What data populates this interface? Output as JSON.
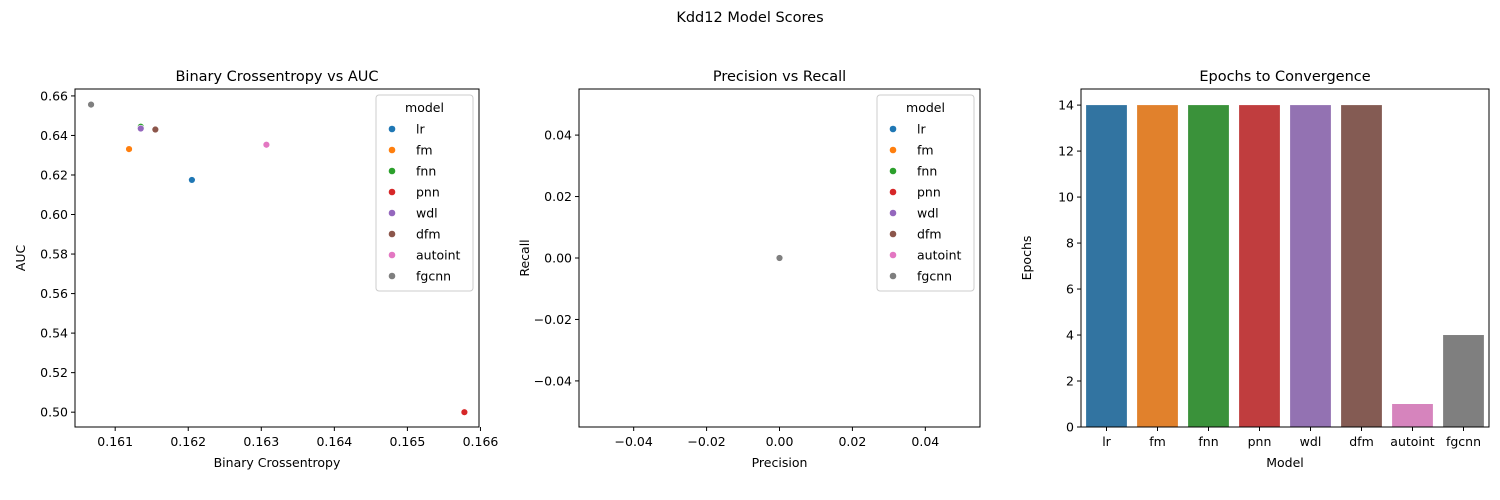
{
  "figure": {
    "suptitle": "Kdd12 Model Scores"
  },
  "chart_data": [
    {
      "type": "scatter",
      "title": "Binary Crossentropy vs AUC",
      "xlabel": "Binary Crossentropy",
      "ylabel": "AUC",
      "xlim": [
        0.16045,
        0.16598
      ],
      "ylim": [
        0.4925,
        0.6635
      ],
      "xticks": [
        0.161,
        0.162,
        0.163,
        0.164,
        0.165,
        0.166
      ],
      "xtick_labels": [
        "0.161",
        "0.162",
        "0.163",
        "0.164",
        "0.165",
        "0.166"
      ],
      "yticks": [
        0.5,
        0.52,
        0.54,
        0.56,
        0.58,
        0.6,
        0.62,
        0.64,
        0.66
      ],
      "ytick_labels": [
        "0.50",
        "0.52",
        "0.54",
        "0.56",
        "0.58",
        "0.60",
        "0.62",
        "0.64",
        "0.66"
      ],
      "grid": false,
      "legend": {
        "title": "model",
        "placement": "upper-right"
      },
      "series": [
        {
          "name": "lr",
          "color": "#1f77b4",
          "x": [
            0.16205
          ],
          "y": [
            0.6175
          ]
        },
        {
          "name": "fm",
          "color": "#ff7f0e",
          "x": [
            0.16119
          ],
          "y": [
            0.6331
          ]
        },
        {
          "name": "fnn",
          "color": "#2ca02c",
          "x": [
            0.16135
          ],
          "y": [
            0.6444
          ]
        },
        {
          "name": "pnn",
          "color": "#d62728",
          "x": [
            0.16578
          ],
          "y": [
            0.5
          ]
        },
        {
          "name": "wdl",
          "color": "#9467bd",
          "x": [
            0.16135
          ],
          "y": [
            0.6435
          ]
        },
        {
          "name": "dfm",
          "color": "#8c564b",
          "x": [
            0.16155
          ],
          "y": [
            0.643
          ]
        },
        {
          "name": "autoint",
          "color": "#e377c2",
          "x": [
            0.16307
          ],
          "y": [
            0.6353
          ]
        },
        {
          "name": "fgcnn",
          "color": "#7f7f7f",
          "x": [
            0.16067
          ],
          "y": [
            0.6556
          ]
        }
      ]
    },
    {
      "type": "scatter",
      "title": "Precision vs Recall",
      "xlabel": "Precision",
      "ylabel": "Recall",
      "xlim": [
        -0.055,
        0.055
      ],
      "ylim": [
        -0.055,
        0.055
      ],
      "xticks": [
        -0.04,
        -0.02,
        0.0,
        0.02,
        0.04
      ],
      "xtick_labels": [
        "−0.04",
        "−0.02",
        "0.00",
        "0.02",
        "0.04"
      ],
      "yticks": [
        -0.04,
        -0.02,
        0.0,
        0.02,
        0.04
      ],
      "ytick_labels": [
        "−0.04",
        "−0.02",
        "0.00",
        "0.02",
        "0.04"
      ],
      "grid": false,
      "legend": {
        "title": "model",
        "placement": "upper-right"
      },
      "series": [
        {
          "name": "lr",
          "color": "#1f77b4",
          "x": [
            0.0
          ],
          "y": [
            0.0
          ]
        },
        {
          "name": "fm",
          "color": "#ff7f0e",
          "x": [
            0.0
          ],
          "y": [
            0.0
          ]
        },
        {
          "name": "fnn",
          "color": "#2ca02c",
          "x": [
            0.0
          ],
          "y": [
            0.0
          ]
        },
        {
          "name": "pnn",
          "color": "#d62728",
          "x": [
            0.0
          ],
          "y": [
            0.0
          ]
        },
        {
          "name": "wdl",
          "color": "#9467bd",
          "x": [
            0.0
          ],
          "y": [
            0.0
          ]
        },
        {
          "name": "dfm",
          "color": "#8c564b",
          "x": [
            0.0
          ],
          "y": [
            0.0
          ]
        },
        {
          "name": "autoint",
          "color": "#e377c2",
          "x": [
            0.0
          ],
          "y": [
            0.0
          ]
        },
        {
          "name": "fgcnn",
          "color": "#7f7f7f",
          "x": [
            0.0
          ],
          "y": [
            0.0
          ]
        }
      ]
    },
    {
      "type": "bar",
      "title": "Epochs to Convergence",
      "xlabel": "Model",
      "ylabel": "Epochs",
      "categories": [
        "lr",
        "fm",
        "fnn",
        "pnn",
        "wdl",
        "dfm",
        "autoint",
        "fgcnn"
      ],
      "values": [
        14,
        14,
        14,
        14,
        14,
        14,
        1,
        4
      ],
      "colors": [
        "#3274a1",
        "#e1812c",
        "#3a923a",
        "#c03d3e",
        "#9372b2",
        "#845b53",
        "#d684bd",
        "#7f7f7f"
      ],
      "ylim": [
        0,
        14.7
      ],
      "yticks": [
        0,
        2,
        4,
        6,
        8,
        10,
        12,
        14
      ],
      "ytick_labels": [
        "0",
        "2",
        "4",
        "6",
        "8",
        "10",
        "12",
        "14"
      ],
      "grid": false
    }
  ]
}
